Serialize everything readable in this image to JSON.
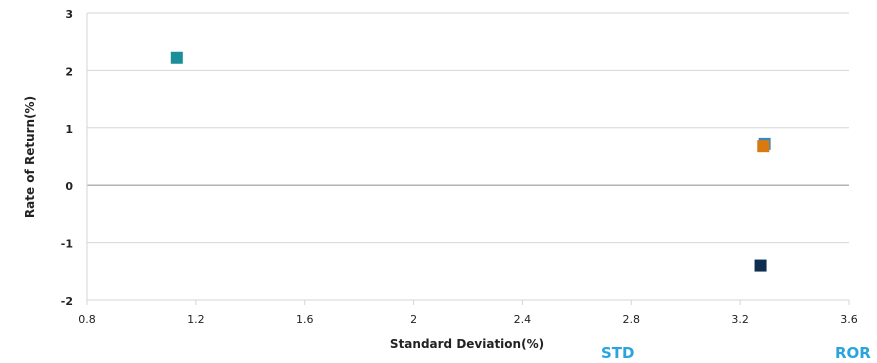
{
  "chart_data": {
    "type": "scatter",
    "xlabel": "Standard Deviation(%)",
    "ylabel": "Rate of Return(%)",
    "xlim": [
      0.8,
      3.6
    ],
    "ylim": [
      -2,
      3
    ],
    "x_ticks": [
      "0.8",
      "1.2",
      "1.6",
      "2",
      "2.4",
      "2.8",
      "3.2",
      "3.6"
    ],
    "y_ticks": [
      "3",
      "2",
      "1",
      "0",
      "-1",
      "-2"
    ],
    "grid": "horizontal",
    "points": [
      {
        "x": 1.13,
        "y": 2.22,
        "color": "#1a8f99"
      },
      {
        "x": 3.29,
        "y": 0.72,
        "color": "#3a86c8"
      },
      {
        "x": 3.285,
        "y": 0.68,
        "color": "#d9790f"
      },
      {
        "x": 3.275,
        "y": -1.4,
        "color": "#0f2d4f"
      }
    ]
  },
  "footer": {
    "left_label": "STD",
    "right_label": "ROR"
  }
}
